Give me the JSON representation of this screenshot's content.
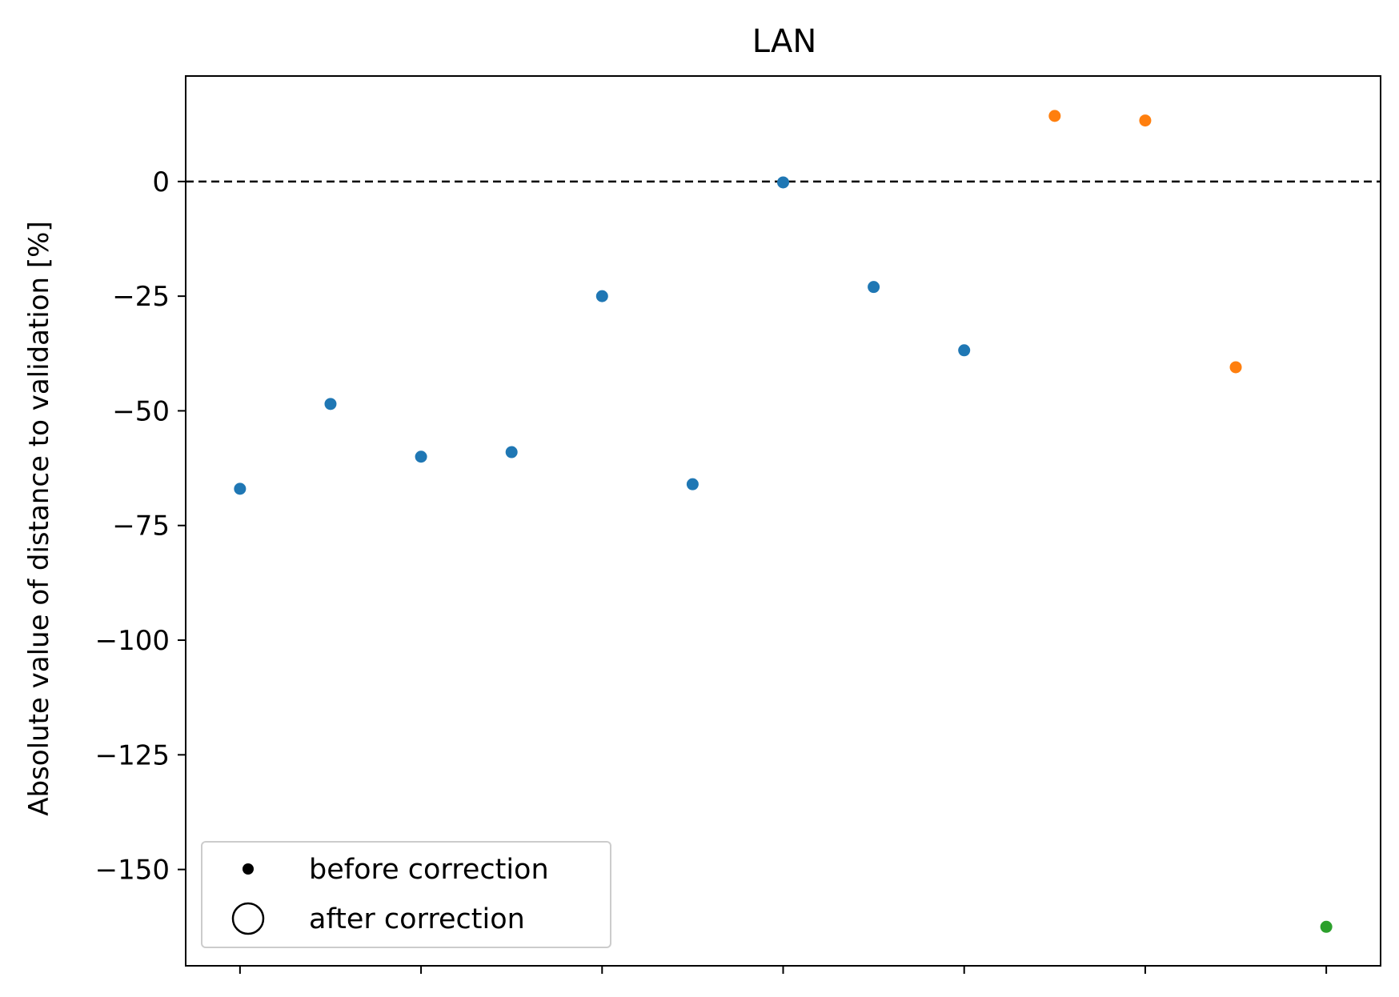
{
  "chart_data": {
    "type": "scatter",
    "title": "LAN",
    "xlabel": "",
    "ylabel": "Absolute value of distance to validation [%]",
    "xlim": [
      -0.6,
      12.6
    ],
    "ylim": [
      -171,
      23
    ],
    "y_ticks": [
      0,
      -25,
      -50,
      -75,
      -100,
      -125,
      -150
    ],
    "y_tick_labels": [
      "0",
      "−25",
      "−50",
      "−75",
      "−100",
      "−125",
      "−150"
    ],
    "x_ticks": [
      0,
      2,
      4,
      6,
      8,
      10,
      12
    ],
    "reference_line": {
      "y": 0,
      "style": "dashed",
      "color": "#000000"
    },
    "grid": false,
    "series": [
      {
        "color": "#1f77b4",
        "points": [
          {
            "x": 0,
            "y": -67
          },
          {
            "x": 1,
            "y": -48.5
          },
          {
            "x": 2,
            "y": -60
          },
          {
            "x": 3,
            "y": -59
          },
          {
            "x": 4,
            "y": -25
          },
          {
            "x": 5,
            "y": -66
          },
          {
            "x": 6,
            "y": -0.2
          },
          {
            "x": 7,
            "y": -23
          },
          {
            "x": 8,
            "y": -36.8
          }
        ]
      },
      {
        "color": "#ff7f0e",
        "points": [
          {
            "x": 9,
            "y": 14.3
          },
          {
            "x": 10,
            "y": 13.3
          },
          {
            "x": 11,
            "y": -40.5
          }
        ]
      },
      {
        "color": "#2ca02c",
        "points": [
          {
            "x": 12,
            "y": -162.5
          }
        ]
      }
    ],
    "legend": {
      "position": "lower-left",
      "entries": [
        {
          "label": "before correction",
          "marker": "filled-dot"
        },
        {
          "label": "after correction",
          "marker": "open-circle"
        }
      ]
    }
  }
}
